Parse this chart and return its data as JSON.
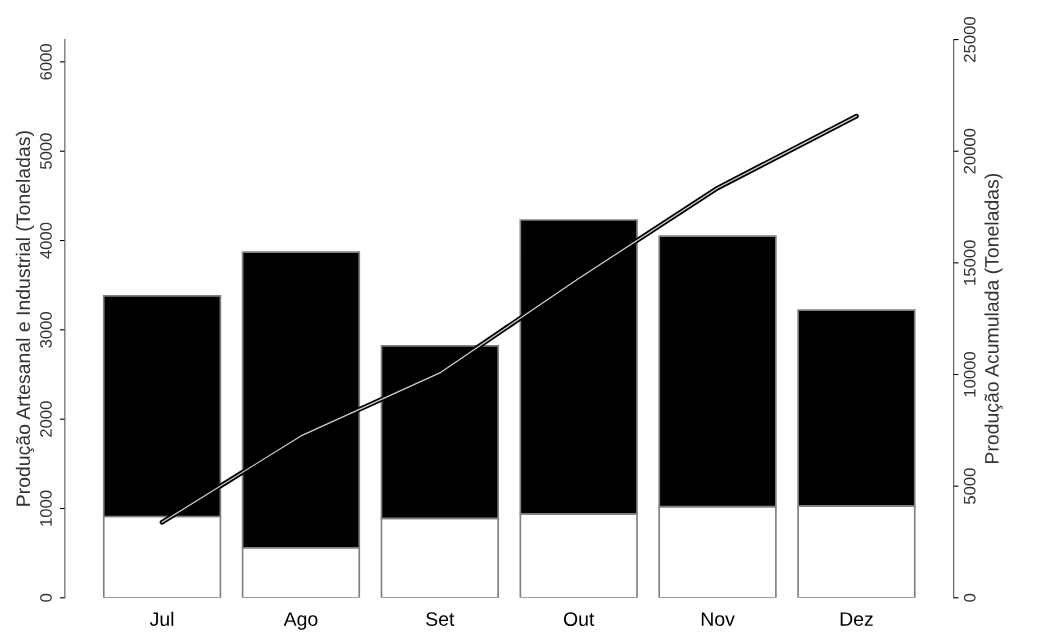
{
  "chart_data": {
    "type": "bar",
    "stacked": true,
    "ylabel": "Produção Artesanal e Industrial (Toneladas)",
    "y2label": "Produção Acumulada (Toneladas)",
    "categories": [
      "Jul",
      "Ago",
      "Set",
      "Out",
      "Nov",
      "Dez"
    ],
    "series": [
      {
        "color": "#ffffff",
        "values": [
          910,
          560,
          890,
          940,
          1020,
          1030
        ]
      },
      {
        "color": "#000000",
        "values": [
          2470,
          3310,
          1930,
          3290,
          3030,
          2190
        ]
      },
      {
        "type": "line",
        "axis": "y2",
        "color": "#000000",
        "values": [
          3380,
          7250,
          10070,
          14300,
          18350,
          21570
        ]
      }
    ],
    "ylim": [
      0,
      6250
    ],
    "yticks": [
      0,
      1000,
      2000,
      3000,
      4000,
      5000,
      6000
    ],
    "y2lim": [
      0,
      25000
    ],
    "y2ticks": [
      0,
      5000,
      10000,
      15000,
      20000,
      25000
    ],
    "grid": false,
    "legend": false
  }
}
